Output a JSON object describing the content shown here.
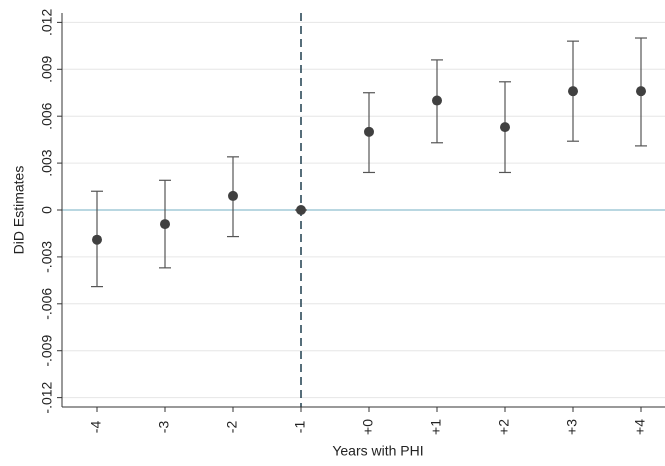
{
  "chart_data": {
    "type": "errorbar",
    "x_label": "Years with PHI",
    "y_label": "DiD Estimates",
    "categories": [
      "-4",
      "-3",
      "-2",
      "-1",
      "+0",
      "+1",
      "+2",
      "+3",
      "+4"
    ],
    "series": [
      {
        "color": "#404040",
        "values": [
          -0.0019,
          -0.0009,
          0.0009,
          0,
          0.005,
          0.007,
          0.0053,
          0.0076,
          0.0076
        ],
        "ci_low": [
          -0.0049,
          -0.0037,
          -0.0017,
          0,
          0.0024,
          0.0043,
          0.0024,
          0.0044,
          0.0041
        ],
        "ci_high": [
          0.0012,
          0.0019,
          0.0034,
          0,
          0.0075,
          0.0096,
          0.0082,
          0.0108,
          0.011
        ]
      }
    ],
    "ylim": [
      -0.0126,
      0.0126
    ],
    "yticks": [
      {
        "value": -0.012,
        "label": "-.012"
      },
      {
        "value": -0.009,
        "label": "-.009"
      },
      {
        "value": -0.006,
        "label": "-.006"
      },
      {
        "value": -0.003,
        "label": "-.003"
      },
      0,
      {
        "value": 0.003,
        "label": ".003"
      },
      {
        "value": 0.006,
        "label": ".006"
      },
      {
        "value": 0.009,
        "label": ".009"
      },
      {
        "value": 0.012,
        "label": ".012"
      }
    ],
    "grid": true,
    "reference_lines": {
      "y": 0,
      "x": "-1",
      "y_color": "#8fbfcf",
      "x_color": "#1f3f4f"
    }
  }
}
